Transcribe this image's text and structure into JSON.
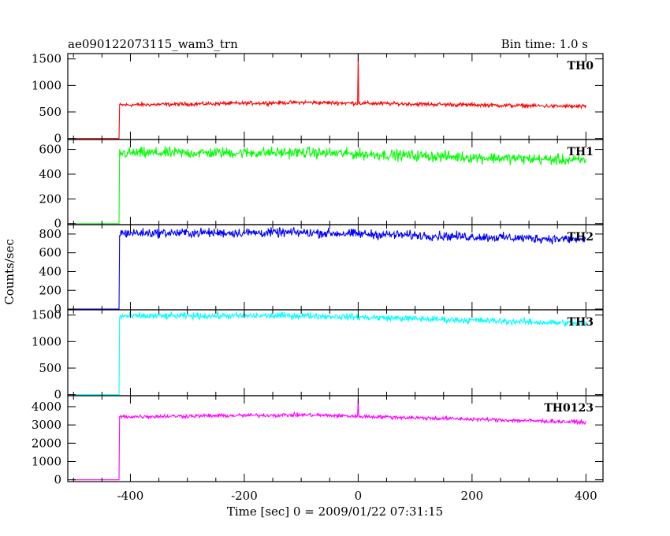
{
  "header": {
    "title": "ae090122073115_wam3_trn",
    "bin_time": "Bin time: 1.0 s"
  },
  "chart_data": {
    "type": "line",
    "title": "ae090122073115_wam3_trn",
    "subtitle": "Bin time: 1.0 s",
    "xlabel": "Time [sec] 0 = 2009/01/22 07:31:15",
    "ylabel": "Counts/sec",
    "xlim": [
      -510,
      430
    ],
    "xticks": [
      -400,
      -200,
      0,
      200,
      400
    ],
    "grid": false,
    "panels": [
      {
        "name": "TH0",
        "color": "#ff0000",
        "ylim": [
          -20,
          1600
        ],
        "yticks": [
          0,
          500,
          1000,
          1500
        ],
        "t_start": -500,
        "t_end": 400,
        "t_onset": -420,
        "background_level": 0,
        "level_start": 630,
        "level_peak": 680,
        "level_end": 600,
        "noise_amplitude": 45,
        "spikes": [
          {
            "t": 0,
            "value": 1600
          }
        ]
      },
      {
        "name": "TH1",
        "color": "#00ff00",
        "ylim": [
          -8,
          680
        ],
        "yticks": [
          0,
          200,
          400,
          600
        ],
        "t_start": -500,
        "t_end": 400,
        "t_onset": -420,
        "background_level": 0,
        "level_start": 570,
        "level_peak": 575,
        "level_end": 510,
        "noise_amplitude": 55,
        "spikes": []
      },
      {
        "name": "TH2",
        "color": "#0000ff",
        "ylim": [
          -8,
          900
        ],
        "yticks": [
          0,
          200,
          400,
          600,
          800
        ],
        "t_start": -500,
        "t_end": 400,
        "t_onset": -420,
        "background_level": 0,
        "level_start": 810,
        "level_peak": 815,
        "level_end": 740,
        "noise_amplitude": 60,
        "spikes": []
      },
      {
        "name": "TH3",
        "color": "#00ffff",
        "ylim": [
          -20,
          1600
        ],
        "yticks": [
          0,
          500,
          1000,
          1500
        ],
        "t_start": -500,
        "t_end": 400,
        "t_onset": -420,
        "background_level": 0,
        "level_start": 1480,
        "level_peak": 1490,
        "level_end": 1340,
        "noise_amplitude": 75,
        "spikes": []
      },
      {
        "name": "TH0123",
        "color": "#ff00ff",
        "ylim": [
          -100,
          4600
        ],
        "yticks": [
          0,
          1000,
          2000,
          3000,
          4000
        ],
        "t_start": -500,
        "t_end": 400,
        "t_onset": -420,
        "background_level": 0,
        "level_start": 3450,
        "level_peak": 3550,
        "level_end": 3150,
        "noise_amplitude": 130,
        "spikes": [
          {
            "t": 0,
            "value": 4450
          }
        ]
      }
    ]
  }
}
